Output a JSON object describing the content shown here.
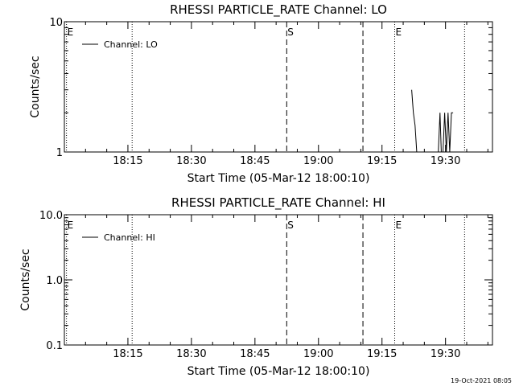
{
  "footer": {
    "timestamp": "19-Oct-2021 08:05"
  },
  "chart_data": [
    {
      "type": "line",
      "title": "RHESSI PARTICLE_RATE Channel: LO",
      "xlabel": "Start Time (05-Mar-12 18:00:10)",
      "ylabel": "Counts/sec",
      "yscale": "log",
      "ylim": [
        1,
        10
      ],
      "y_ticks": [
        1,
        10
      ],
      "y_tick_labels": [
        "1",
        "10"
      ],
      "xlim_minutes": [
        0,
        40
      ],
      "x_ticks": [
        15,
        30,
        45,
        60,
        75,
        90
      ],
      "x_tick_labels": [
        "18:15",
        "18:30",
        "18:45",
        "19:00",
        "19:15",
        "19:30"
      ],
      "grid": false,
      "legend_position": "top-left",
      "series": [
        {
          "name": "Channel: LO",
          "x_minutes": [
            82.0,
            82.4,
            82.8,
            83.2,
            83.6,
            84.0,
            88.3,
            88.7,
            89.0,
            89.4,
            89.8,
            90.2,
            90.6,
            91.0,
            91.4,
            91.8
          ],
          "values": [
            3.0,
            2.0,
            1.6,
            1.0,
            1.0,
            1.0,
            1.0,
            2.0,
            1.0,
            1.0,
            2.0,
            1.0,
            2.0,
            1.0,
            2.0,
            2.0
          ]
        }
      ],
      "markers": [
        {
          "label": "E",
          "x_minutes": 0.5,
          "style": "dotted"
        },
        {
          "label": "",
          "x_minutes": 16.0,
          "style": "dotted"
        },
        {
          "label": "S",
          "x_minutes": 52.5,
          "style": "dashed"
        },
        {
          "label": "",
          "x_minutes": 70.5,
          "style": "dashed"
        },
        {
          "label": "E",
          "x_minutes": 78.0,
          "style": "dotted"
        },
        {
          "label": "",
          "x_minutes": 94.5,
          "style": "dotted"
        }
      ]
    },
    {
      "type": "line",
      "title": "RHESSI PARTICLE_RATE Channel: HI",
      "xlabel": "Start Time (05-Mar-12 18:00:10)",
      "ylabel": "Counts/sec",
      "yscale": "log",
      "ylim": [
        0.1,
        10
      ],
      "y_ticks": [
        0.1,
        1,
        10
      ],
      "y_tick_labels": [
        "0.1",
        "1.0",
        "10.0"
      ],
      "xlim_minutes": [
        0,
        40
      ],
      "x_ticks": [
        15,
        30,
        45,
        60,
        75,
        90
      ],
      "x_tick_labels": [
        "18:15",
        "18:30",
        "18:45",
        "19:00",
        "19:15",
        "19:30"
      ],
      "grid": false,
      "legend_position": "top-left",
      "series": [
        {
          "name": "Channel: HI",
          "x_minutes": [],
          "values": []
        }
      ],
      "markers": [
        {
          "label": "E",
          "x_minutes": 0.5,
          "style": "dotted"
        },
        {
          "label": "",
          "x_minutes": 16.0,
          "style": "dotted"
        },
        {
          "label": "S",
          "x_minutes": 52.5,
          "style": "dashed"
        },
        {
          "label": "",
          "x_minutes": 70.5,
          "style": "dashed"
        },
        {
          "label": "E",
          "x_minutes": 78.0,
          "style": "dotted"
        },
        {
          "label": "",
          "x_minutes": 94.5,
          "style": "dotted"
        }
      ]
    }
  ]
}
